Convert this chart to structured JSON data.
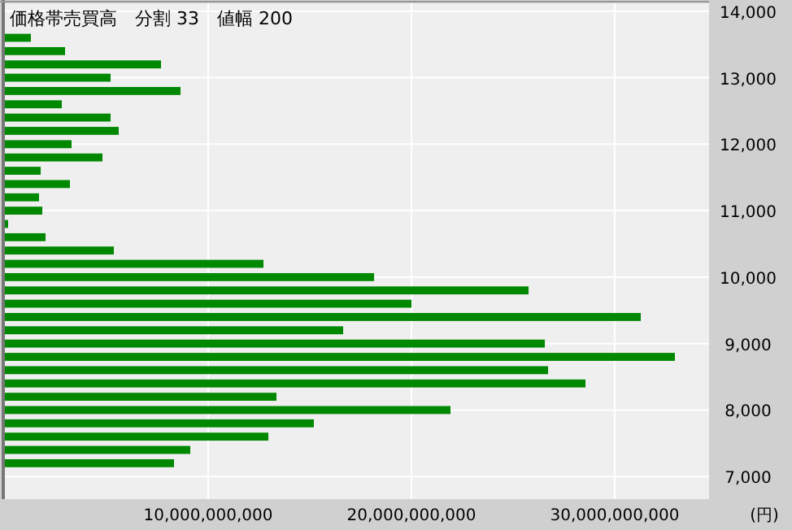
{
  "chart_data": {
    "type": "bar",
    "orientation": "horizontal",
    "title": "価格帯売買高　分割 33　値幅 200",
    "xlabel": "(円)",
    "x": [
      13600,
      13400,
      13200,
      13000,
      12800,
      12600,
      12400,
      12200,
      12000,
      11800,
      11600,
      11400,
      11200,
      11000,
      10800,
      10600,
      10400,
      10200,
      10000,
      9800,
      9600,
      9400,
      9200,
      9000,
      8800,
      8600,
      8400,
      8200,
      8000,
      7800,
      7600,
      7400,
      7200
    ],
    "values": [
      1280000000,
      2960000000,
      7680000000,
      5200000000,
      8640000000,
      2800000000,
      5200000000,
      5600000000,
      3280000000,
      4800000000,
      1760000000,
      3200000000,
      1680000000,
      1840000000,
      160000000,
      2000000000,
      5360000000,
      12720000000,
      18160000000,
      25760000000,
      20000000000,
      31280000000,
      16640000000,
      26560000000,
      32960000000,
      26720000000,
      28560000000,
      13360000000,
      21920000000,
      15200000000,
      12960000000,
      9120000000,
      8320000000
    ],
    "color": "#008800",
    "xlim": [
      0,
      34640000000
    ],
    "xticks": [
      {
        "value": 10000000000,
        "label": "10,000,000,000"
      },
      {
        "value": 20000000000,
        "label": "20,000,000,000"
      },
      {
        "value": 30000000000,
        "label": "30,000,000,000"
      }
    ],
    "ylim": [
      6660,
      14120
    ],
    "yticks": [
      {
        "value": 7000,
        "label": "7,000"
      },
      {
        "value": 8000,
        "label": "8,000"
      },
      {
        "value": 9000,
        "label": "9,000"
      },
      {
        "value": 10000,
        "label": "10,000"
      },
      {
        "value": 11000,
        "label": "11,000"
      },
      {
        "value": 12000,
        "label": "12,000"
      },
      {
        "value": 13000,
        "label": "13,000"
      },
      {
        "value": 14000,
        "label": "14,000"
      }
    ],
    "grid": true
  }
}
